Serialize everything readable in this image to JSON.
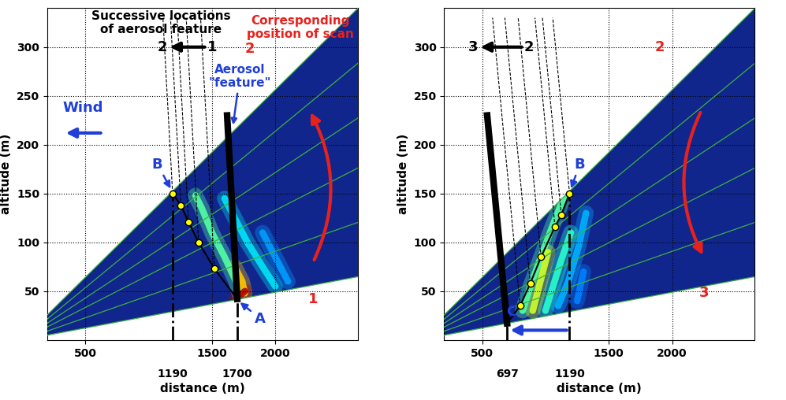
{
  "chart_data": [
    {
      "type": "scan",
      "xlabel": "distance (m)",
      "ylabel": "altitude (m)",
      "xlim": [
        200,
        2650
      ],
      "ylim": [
        0,
        340
      ],
      "xticks": [
        500,
        1500,
        2000
      ],
      "yticks": [
        50,
        100,
        150,
        200,
        250,
        300
      ],
      "grid": true,
      "color": "#11268c",
      "scan_elevations_deg": [
        1.4,
        2.6,
        3.8,
        4.9,
        6.1,
        7.3
      ],
      "marked_distances": [
        1190,
        1700
      ],
      "feature_path": [
        [
          1190,
          150
        ],
        [
          1255,
          138
        ],
        [
          1315,
          121
        ],
        [
          1395,
          100
        ],
        [
          1520,
          73
        ],
        [
          1700,
          42
        ]
      ],
      "feature_line": [
        [
          1700,
          42
        ],
        [
          1620,
          230
        ]
      ],
      "dashed_top": 330,
      "plumes": [
        {
          "points": [
            [
              2100,
              60
            ],
            [
              2000,
              85
            ],
            [
              1900,
              110
            ]
          ],
          "intensity": 0.28
        },
        {
          "points": [
            [
              2000,
              55
            ],
            [
              1900,
              75
            ],
            [
              1780,
              100
            ],
            [
              1680,
              125
            ],
            [
              1600,
              145
            ]
          ],
          "intensity": 0.35
        },
        {
          "points": [
            [
              1720,
              45
            ],
            [
              1690,
              60
            ],
            [
              1600,
              85
            ],
            [
              1500,
              110
            ],
            [
              1420,
              135
            ],
            [
              1370,
              148
            ]
          ],
          "intensity": 0.45
        },
        {
          "points": [
            [
              1760,
              48
            ],
            [
              1740,
              60
            ],
            [
              1680,
              75
            ]
          ],
          "intensity": 0.7
        },
        {
          "points": [
            [
              1690,
              42
            ],
            [
              1760,
              50
            ]
          ],
          "intensity": 0.95
        }
      ],
      "arrows": [
        {
          "from": [
            1460,
            300
          ],
          "to": [
            1150,
            300
          ],
          "color": "#000000",
          "line_style": "solid"
        },
        {
          "from": [
            2300,
            80
          ],
          "to": [
            2270,
            235
          ],
          "color": "#e8211d",
          "line_style": "arc"
        },
        {
          "from": [
            640,
            212
          ],
          "to": [
            330,
            212
          ],
          "color": "#1f3fd6",
          "line_style": "solid"
        }
      ],
      "annotations": [
        {
          "text": "Successive locations\nof aerosol feature",
          "x": 1100,
          "y": 325,
          "color": "#000000"
        },
        {
          "text": "Corresponding\nposition of scan",
          "x": 2200,
          "y": 320,
          "color": "#e8211d"
        },
        {
          "text": "1",
          "x": 1500,
          "y": 300,
          "color": "#000000"
        },
        {
          "text": "2",
          "x": 1110,
          "y": 300,
          "color": "#000000"
        },
        {
          "text": "2",
          "x": 1800,
          "y": 298,
          "color": "#e8211d"
        },
        {
          "text": "1",
          "x": 2300,
          "y": 42,
          "color": "#e8211d"
        },
        {
          "text": "Wind",
          "x": 480,
          "y": 238,
          "color": "#1f3fd6"
        },
        {
          "text": "Aerosol\n\"feature\"",
          "x": 1720,
          "y": 270,
          "color": "#1f3fd6",
          "arrow_to": [
            1665,
            218
          ]
        },
        {
          "text": "B",
          "x": 1070,
          "y": 180,
          "color": "#1f3fd6",
          "arrow_to": [
            1183,
            153
          ]
        },
        {
          "text": "A",
          "x": 1880,
          "y": 22,
          "color": "#1f3fd6",
          "arrow_to": [
            1708,
            40
          ]
        }
      ]
    },
    {
      "type": "scan",
      "xlabel": "distance (m)",
      "ylabel": "altitude (m)",
      "xlim": [
        200,
        2650
      ],
      "ylim": [
        0,
        340
      ],
      "xticks": [
        500,
        1500,
        2000
      ],
      "yticks": [
        50,
        100,
        150,
        200,
        250,
        300
      ],
      "grid": true,
      "color": "#11268c",
      "scan_elevations_deg": [
        1.4,
        2.6,
        3.8,
        4.9,
        6.1,
        7.3
      ],
      "marked_distances": [
        697,
        1190
      ],
      "feature_path": [
        [
          697,
          17
        ],
        [
          800,
          35
        ],
        [
          880,
          58
        ],
        [
          965,
          85
        ],
        [
          1075,
          116
        ],
        [
          1125,
          128
        ],
        [
          1190,
          150
        ]
      ],
      "feature_line": [
        [
          697,
          17
        ],
        [
          540,
          230
        ]
      ],
      "dashed_top": 330,
      "plumes": [
        {
          "points": [
            [
              1250,
              40
            ],
            [
              1300,
              70
            ]
          ],
          "intensity": 0.25
        },
        {
          "points": [
            [
              1100,
              35
            ],
            [
              1180,
              60
            ],
            [
              1260,
              95
            ],
            [
              1320,
              130
            ]
          ],
          "intensity": 0.3
        },
        {
          "points": [
            [
              1000,
              30
            ],
            [
              1060,
              55
            ],
            [
              1120,
              80
            ],
            [
              1200,
              110
            ]
          ],
          "intensity": 0.4
        },
        {
          "points": [
            [
              820,
              30
            ],
            [
              880,
              55
            ],
            [
              950,
              80
            ],
            [
              1050,
              115
            ],
            [
              1150,
              148
            ]
          ],
          "intensity": 0.45
        },
        {
          "points": [
            [
              900,
              30
            ],
            [
              960,
              60
            ],
            [
              1020,
              90
            ]
          ],
          "intensity": 0.6
        }
      ],
      "arrows": [
        {
          "from": [
            830,
            300
          ],
          "to": [
            470,
            300
          ],
          "color": "#000000",
          "line_style": "solid"
        },
        {
          "from": [
            2230,
            235
          ],
          "to": [
            2250,
            85
          ],
          "color": "#e8211d",
          "line_style": "arc"
        },
        {
          "from": [
            1185,
            10
          ],
          "to": [
            705,
            10
          ],
          "color": "#1f3fd6",
          "line_style": "solid"
        }
      ],
      "annotations": [
        {
          "text": "3",
          "x": 430,
          "y": 300,
          "color": "#000000"
        },
        {
          "text": "2",
          "x": 870,
          "y": 300,
          "color": "#000000"
        },
        {
          "text": "2",
          "x": 1900,
          "y": 300,
          "color": "#e8211d"
        },
        {
          "text": "3",
          "x": 2250,
          "y": 48,
          "color": "#e8211d"
        },
        {
          "text": "B",
          "x": 1270,
          "y": 180,
          "color": "#1f3fd6",
          "arrow_to": [
            1196,
            153
          ]
        },
        {
          "text": "C",
          "x": 730,
          "y": 29,
          "color": "#1f3fd6"
        }
      ]
    }
  ]
}
